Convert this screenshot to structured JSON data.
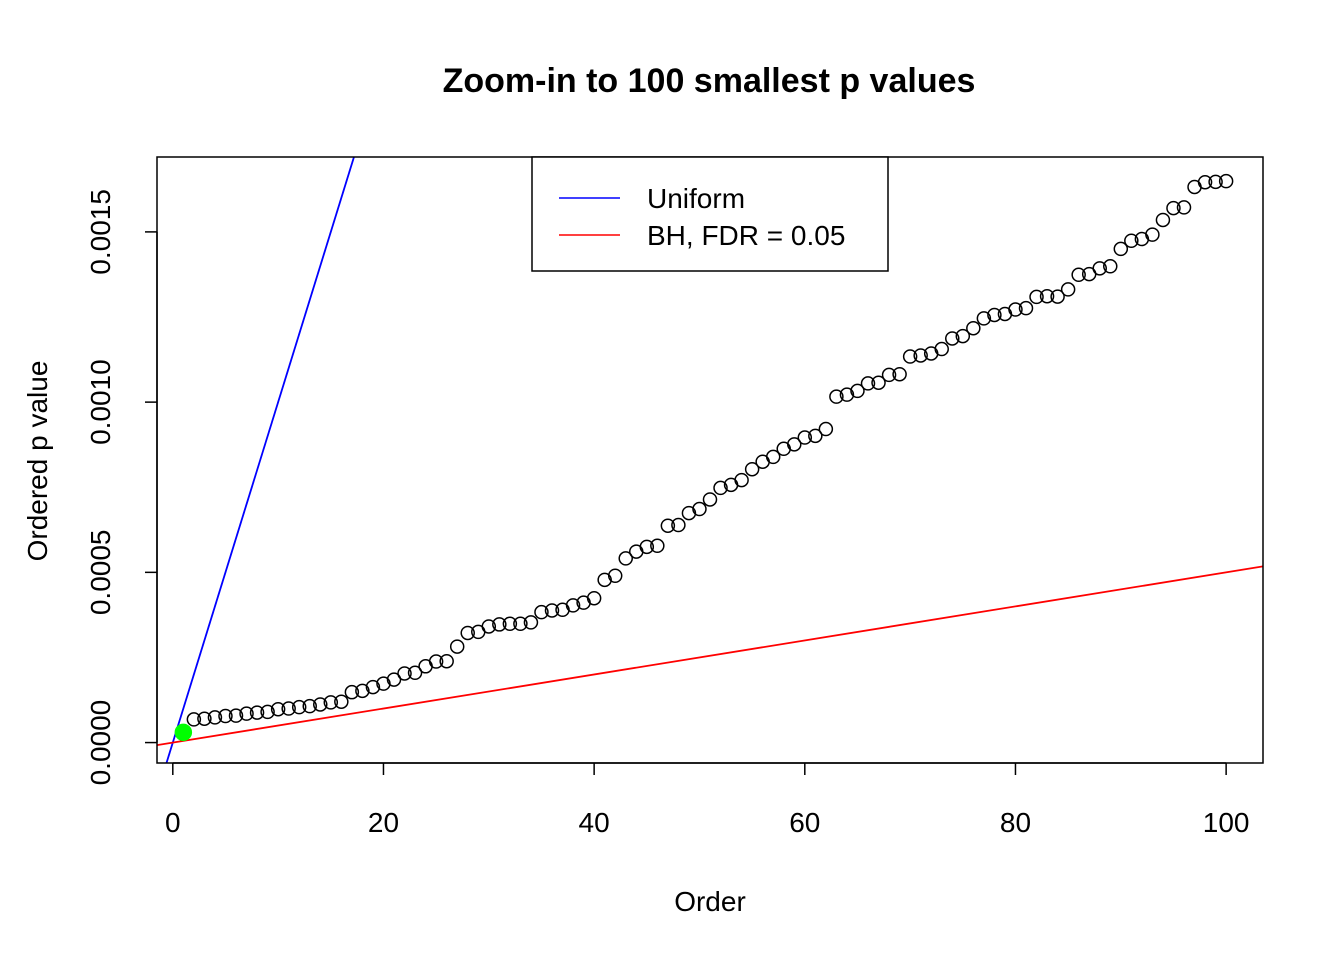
{
  "chart_data": {
    "type": "scatter",
    "title": "Zoom-in to 100 smallest p values",
    "xlabel": "Order",
    "ylabel": "Ordered p value",
    "xlim": [
      -1.5,
      103.5
    ],
    "ylim": [
      -6e-05,
      0.00172
    ],
    "x_ticks": [
      0,
      20,
      40,
      60,
      80,
      100
    ],
    "x_tick_labels": [
      "0",
      "20",
      "40",
      "60",
      "80",
      "100"
    ],
    "y_ticks": [
      0,
      0.0005,
      0.001,
      0.0015
    ],
    "y_tick_labels": [
      "0.0000",
      "0.0005",
      "0.0010",
      "0.0015"
    ],
    "grid": false,
    "legend_position": "top-center",
    "series": [
      {
        "type": "scatter",
        "marker": "open-circle",
        "color": "#000000",
        "x": [
          2,
          3,
          4,
          5,
          6,
          7,
          8,
          9,
          10,
          11,
          12,
          13,
          14,
          15,
          16,
          17,
          18,
          19,
          20,
          21,
          22,
          23,
          24,
          25,
          26,
          27,
          28,
          29,
          30,
          31,
          32,
          33,
          34,
          35,
          36,
          37,
          38,
          39,
          40,
          41,
          42,
          43,
          44,
          45,
          46,
          47,
          48,
          49,
          50,
          51,
          52,
          53,
          54,
          55,
          56,
          57,
          58,
          59,
          60,
          61,
          62,
          63,
          64,
          65,
          66,
          67,
          68,
          69,
          70,
          71,
          72,
          73,
          74,
          75,
          76,
          77,
          78,
          79,
          80,
          81,
          82,
          83,
          84,
          85,
          86,
          87,
          88,
          89,
          90,
          91,
          92,
          93,
          94,
          95,
          96,
          97,
          98,
          99,
          100
        ],
        "values": [
          6.8e-05,
          7e-05,
          7.4e-05,
          7.8e-05,
          7.9e-05,
          8.5e-05,
          8.8e-05,
          9e-05,
          9.8e-05,
          0.0001,
          0.000104,
          0.000107,
          0.000112,
          0.000118,
          0.00012,
          0.000148,
          0.000152,
          0.000163,
          0.000173,
          0.000185,
          0.000203,
          0.000205,
          0.000224,
          0.000238,
          0.000239,
          0.000282,
          0.000322,
          0.000325,
          0.000341,
          0.000347,
          0.000349,
          0.000349,
          0.000353,
          0.000383,
          0.000388,
          0.00039,
          0.000403,
          0.000411,
          0.000424,
          0.000478,
          0.00049,
          0.000541,
          0.000561,
          0.000575,
          0.000578,
          0.000637,
          0.000639,
          0.000674,
          0.000686,
          0.000714,
          0.000748,
          0.000757,
          0.000771,
          0.000803,
          0.000825,
          0.000839,
          0.000863,
          0.000876,
          0.000896,
          0.000901,
          0.000921,
          0.001016,
          0.001022,
          0.001033,
          0.001055,
          0.001057,
          0.00108,
          0.001082,
          0.001134,
          0.001137,
          0.001143,
          0.001156,
          0.001187,
          0.001194,
          0.001217,
          0.001246,
          0.001256,
          0.001259,
          0.001272,
          0.001276,
          0.001309,
          0.001311,
          0.00131,
          0.001331,
          0.001374,
          0.001376,
          0.001393,
          0.001399,
          0.00145,
          0.001474,
          0.001479,
          0.001492,
          0.001535,
          0.00157,
          0.001572,
          0.001632,
          0.001646,
          0.001647,
          0.001649
        ]
      },
      {
        "type": "scatter",
        "marker": "filled-circle",
        "color": "#00ff00",
        "x": [
          1
        ],
        "values": [
          3e-05
        ]
      },
      {
        "type": "line",
        "name": "Uniform",
        "color": "#0000ff",
        "slope": 0.0001,
        "intercept": 0
      },
      {
        "type": "line",
        "name": "BH, FDR = 0.05",
        "color": "#ff0000",
        "slope": 5e-06,
        "intercept": 0
      }
    ]
  }
}
